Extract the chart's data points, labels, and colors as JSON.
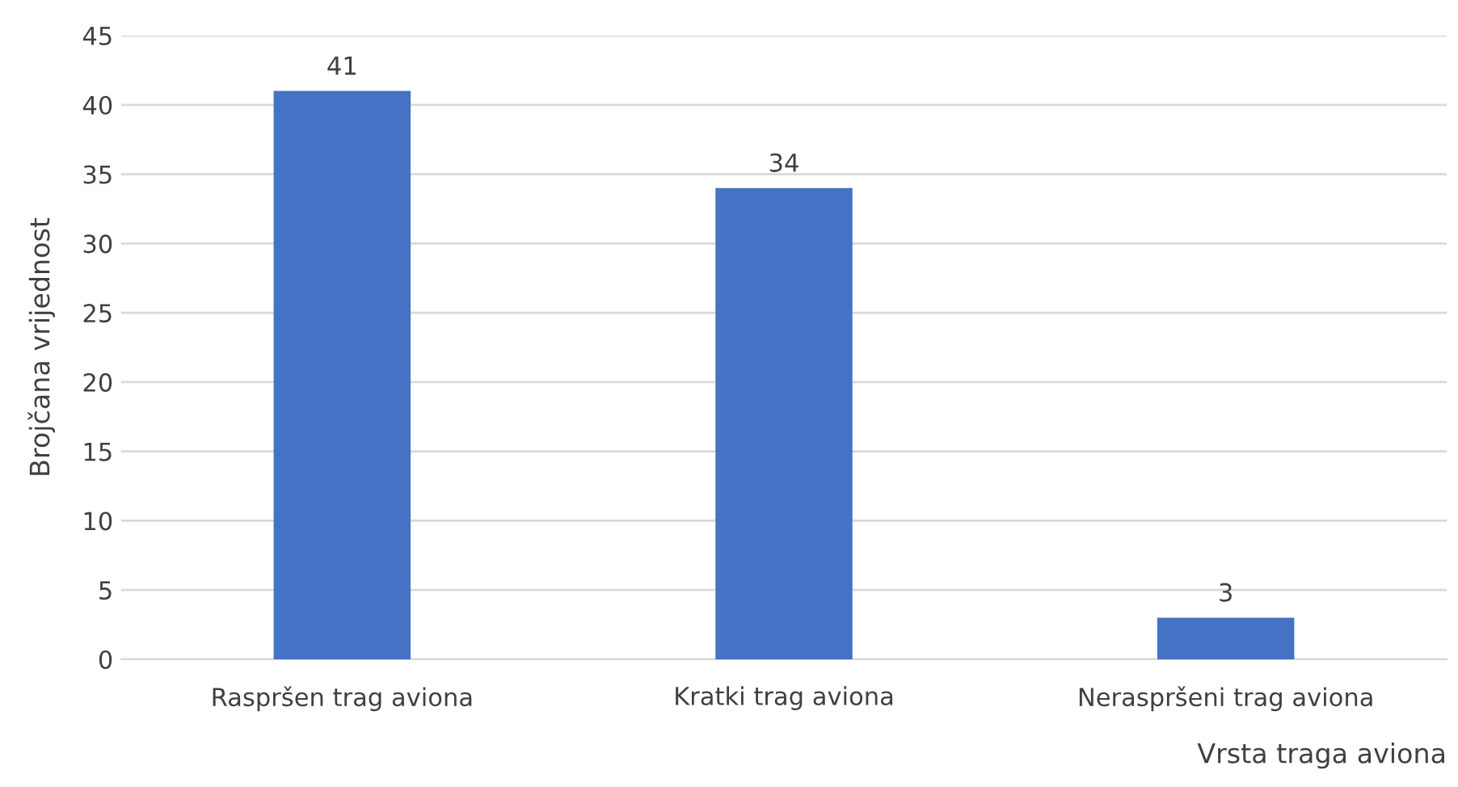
{
  "chart_data": {
    "type": "bar",
    "xlabel": "Vrsta traga aviona",
    "ylabel": "Brojčana vrijednost",
    "categories": [
      "Raspršen trag aviona",
      "Kratki trag aviona",
      "Neraspršeni trag aviona"
    ],
    "values": [
      41,
      34,
      3
    ],
    "color": "#4472c4",
    "ylim": [
      0,
      45
    ],
    "yticks": [
      0,
      5,
      10,
      15,
      20,
      25,
      30,
      35,
      40,
      45
    ],
    "grid": "y",
    "data_labels": true
  }
}
